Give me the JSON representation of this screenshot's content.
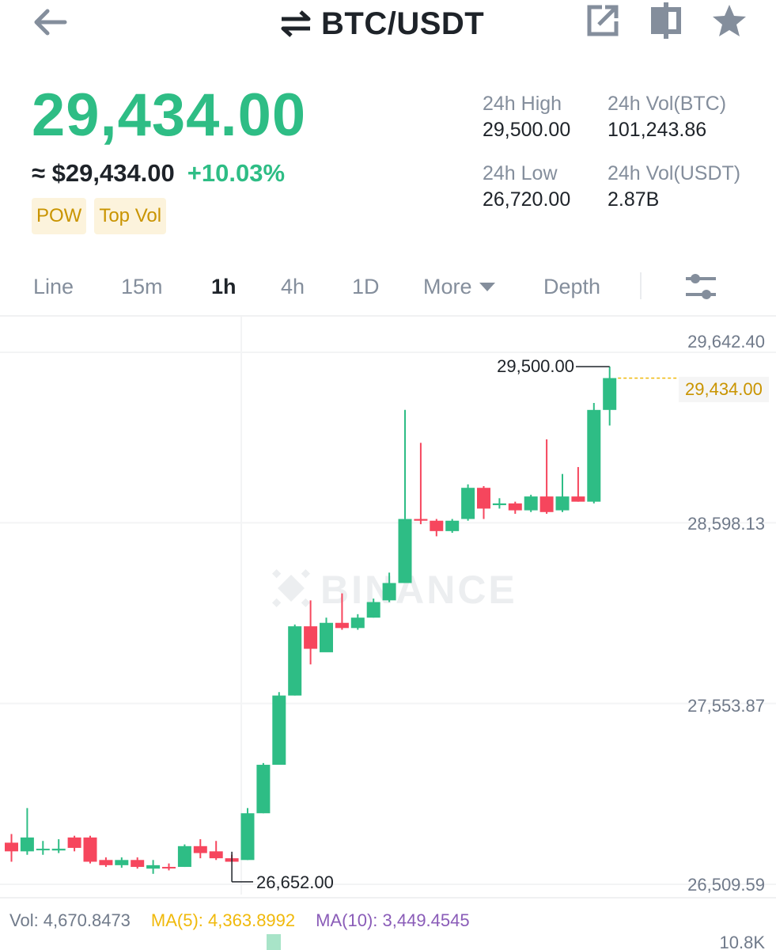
{
  "header": {
    "pair": "BTC/USDT",
    "icons": {
      "back": "arrow-left-icon",
      "swap": "swap-arrows-icon",
      "share": "share-icon",
      "split": "split-view-icon",
      "favorite": "star-icon"
    }
  },
  "ticker": {
    "last_price": "29,434.00",
    "fiat_price": "≈ $29,434.00",
    "change_pct": "+10.03%",
    "tags": [
      "POW",
      "Top Vol"
    ]
  },
  "stats": {
    "high_label": "24h High",
    "high_value": "29,500.00",
    "vol_btc_label": "24h Vol(BTC)",
    "vol_btc_value": "101,243.86",
    "low_label": "24h Low",
    "low_value": "26,720.00",
    "vol_usdt_label": "24h Vol(USDT)",
    "vol_usdt_value": "2.87B"
  },
  "tabs": {
    "items": [
      "Line",
      "15m",
      "1h",
      "4h",
      "1D",
      "More",
      "Depth"
    ],
    "active": "1h"
  },
  "colors": {
    "up": "#2ebd85",
    "down": "#f6465d",
    "accent": "#f0b90b",
    "last_price_line": "#f0b90b"
  },
  "chart_data": {
    "type": "candlestick",
    "interval": "1h",
    "watermark": "BINANCE",
    "y_ticks": [
      "29,642.40",
      "28,598.13",
      "27,553.87",
      "26,509.59"
    ],
    "ylim": [
      26509.59,
      29642.4
    ],
    "last_price_label": "29,434.00",
    "last_price": 29434.0,
    "max_label": "29,500.00",
    "max_value": 29500.0,
    "min_label": "26,652.00",
    "min_value": 26652.0,
    "candles": [
      [
        26750,
        26700,
        26800,
        26640
      ],
      [
        26700,
        26780,
        26950,
        26680
      ],
      [
        26710,
        26715,
        26760,
        26680
      ],
      [
        26705,
        26715,
        26770,
        26690
      ],
      [
        26780,
        26720,
        26790,
        26700
      ],
      [
        26780,
        26640,
        26790,
        26630
      ],
      [
        26650,
        26620,
        26665,
        26610
      ],
      [
        26620,
        26650,
        26665,
        26605
      ],
      [
        26650,
        26610,
        26665,
        26600
      ],
      [
        26600,
        26620,
        26650,
        26570
      ],
      [
        26610,
        26605,
        26630,
        26590
      ],
      [
        26610,
        26730,
        26740,
        26610
      ],
      [
        26730,
        26690,
        26770,
        26660
      ],
      [
        26700,
        26660,
        26760,
        26650
      ],
      [
        26660,
        26640,
        26680,
        26652
      ],
      [
        26650,
        26920,
        26950,
        26650
      ],
      [
        26920,
        27200,
        27210,
        26920
      ],
      [
        27200,
        27600,
        27620,
        27200
      ],
      [
        27600,
        28000,
        28010,
        27600
      ],
      [
        28000,
        27870,
        28150,
        27780
      ],
      [
        27850,
        28020,
        28050,
        27860
      ],
      [
        28020,
        27990,
        28190,
        27980
      ],
      [
        27990,
        28050,
        28070,
        27980
      ],
      [
        28050,
        28140,
        28160,
        28050
      ],
      [
        28150,
        28250,
        28310,
        28140
      ],
      [
        28250,
        28620,
        29250,
        28620
      ],
      [
        28620,
        28610,
        29060,
        28590
      ],
      [
        28610,
        28550,
        28620,
        28520
      ],
      [
        28550,
        28610,
        28620,
        28540
      ],
      [
        28620,
        28800,
        28820,
        28610
      ],
      [
        28800,
        28680,
        28810,
        28620
      ],
      [
        28700,
        28710,
        28740,
        28680
      ],
      [
        28710,
        28670,
        28720,
        28650
      ],
      [
        28670,
        28750,
        28760,
        28660
      ],
      [
        28750,
        28660,
        29080,
        28650
      ],
      [
        28670,
        28750,
        28880,
        28660
      ],
      [
        28750,
        28720,
        28920,
        28720
      ],
      [
        28720,
        29250,
        29290,
        28710
      ],
      [
        29250,
        29434,
        29500,
        29160
      ]
    ]
  },
  "volume": {
    "vol_text": "Vol: 4,670.8473",
    "ma5_text": "MA(5): 4,363.8992",
    "ma10_text": "MA(10): 3,449.4545",
    "axis_label": "10.8K"
  }
}
